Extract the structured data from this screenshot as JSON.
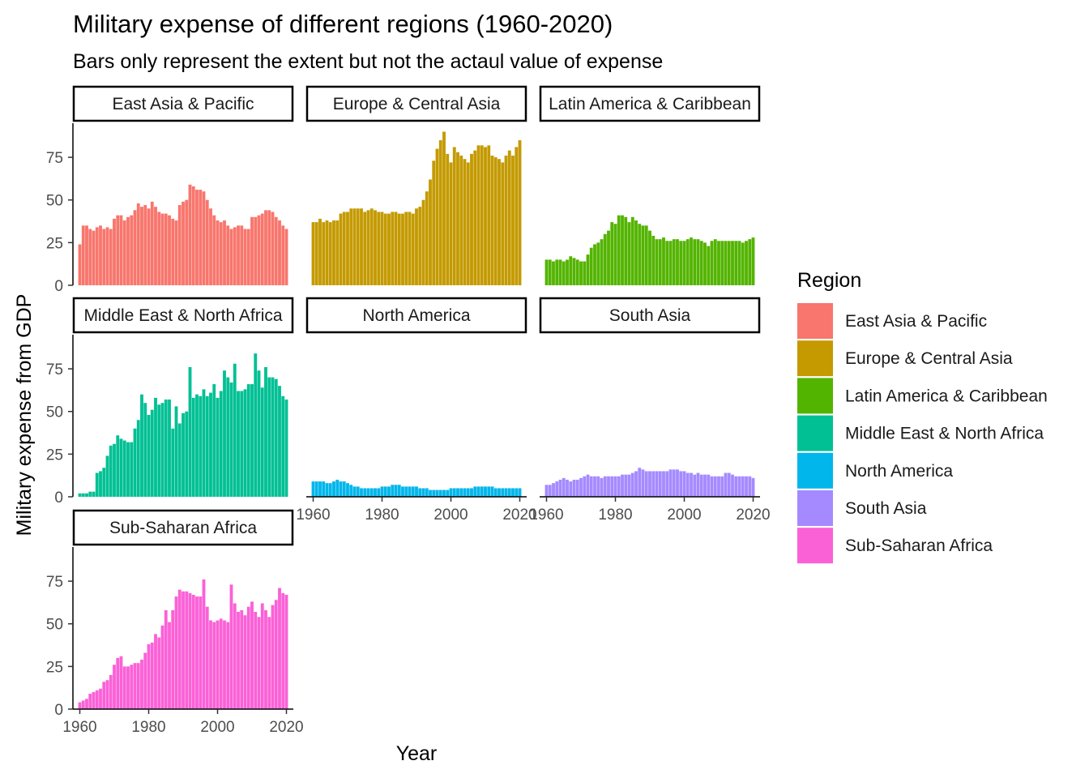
{
  "chart_data": {
    "type": "bar",
    "title": "Military expense of different regions (1960-2020)",
    "subtitle": "Bars only represent the extent but not the actaul value of expense",
    "xlabel": "Year",
    "ylabel": "Military expense from GDP",
    "xlim": [
      1958,
      2022
    ],
    "ylim": [
      0,
      95
    ],
    "x_ticks": [
      1960,
      1980,
      2000,
      2020
    ],
    "y_ticks": [
      0,
      25,
      50,
      75
    ],
    "legend": {
      "title": "Region",
      "placement": "right"
    },
    "grid": false,
    "x": [
      1960,
      1961,
      1962,
      1963,
      1964,
      1965,
      1966,
      1967,
      1968,
      1969,
      1970,
      1971,
      1972,
      1973,
      1974,
      1975,
      1976,
      1977,
      1978,
      1979,
      1980,
      1981,
      1982,
      1983,
      1984,
      1985,
      1986,
      1987,
      1988,
      1989,
      1990,
      1991,
      1992,
      1993,
      1994,
      1995,
      1996,
      1997,
      1998,
      1999,
      2000,
      2001,
      2002,
      2003,
      2004,
      2005,
      2006,
      2007,
      2008,
      2009,
      2010,
      2011,
      2012,
      2013,
      2014,
      2015,
      2016,
      2017,
      2018,
      2019,
      2020
    ],
    "series": [
      {
        "name": "East Asia & Pacific",
        "color": "#F8766D",
        "values": [
          24,
          35,
          35,
          33,
          32,
          34,
          35,
          33,
          34,
          33,
          39,
          41,
          41,
          38,
          40,
          41,
          44,
          48,
          46,
          47,
          45,
          49,
          46,
          43,
          42,
          42,
          41,
          39,
          38,
          47,
          49,
          50,
          59,
          58,
          56,
          56,
          55,
          50,
          45,
          41,
          38,
          37,
          38,
          35,
          33,
          34,
          35,
          35,
          33,
          33,
          40,
          40,
          41,
          42,
          44,
          44,
          43,
          40,
          38,
          35,
          33
        ]
      },
      {
        "name": "Europe & Central Asia",
        "color": "#C49A00",
        "values": [
          37,
          37,
          39,
          37,
          38,
          37,
          38,
          38,
          42,
          43,
          43,
          45,
          45,
          45,
          45,
          43,
          44,
          45,
          44,
          43,
          43,
          42,
          42,
          43,
          43,
          42,
          42,
          43,
          43,
          42,
          45,
          46,
          50,
          55,
          62,
          73,
          80,
          85,
          90,
          77,
          72,
          81,
          78,
          76,
          74,
          72,
          77,
          79,
          82,
          82,
          81,
          82,
          76,
          75,
          74,
          72,
          76,
          79,
          76,
          81,
          85
        ]
      },
      {
        "name": "Latin America & Caribbean",
        "color": "#53B400",
        "values": [
          15,
          15,
          14,
          15,
          15,
          14,
          15,
          17,
          16,
          15,
          14,
          14,
          18,
          22,
          24,
          25,
          27,
          30,
          32,
          37,
          36,
          41,
          41,
          40,
          37,
          40,
          38,
          36,
          35,
          35,
          32,
          29,
          27,
          27,
          28,
          26,
          26,
          27,
          27,
          26,
          26,
          27,
          28,
          27,
          27,
          26,
          25,
          23,
          26,
          27,
          26,
          26,
          26,
          26,
          26,
          26,
          26,
          25,
          26,
          27,
          28
        ]
      },
      {
        "name": "Middle East & North Africa",
        "color": "#00C094",
        "values": [
          2,
          2,
          2,
          3,
          3,
          14,
          15,
          17,
          24,
          30,
          31,
          36,
          34,
          33,
          32,
          32,
          40,
          45,
          60,
          55,
          48,
          51,
          58,
          54,
          55,
          57,
          57,
          40,
          53,
          43,
          49,
          50,
          76,
          58,
          60,
          59,
          63,
          59,
          61,
          66,
          58,
          62,
          74,
          70,
          67,
          78,
          62,
          62,
          63,
          66,
          66,
          84,
          74,
          64,
          76,
          70,
          70,
          69,
          65,
          59,
          57
        ]
      },
      {
        "name": "North America",
        "color": "#00B6EB",
        "values": [
          9,
          9,
          9,
          9,
          8,
          8,
          9,
          10,
          9,
          9,
          8,
          7,
          6,
          6,
          5,
          5,
          5,
          5,
          5,
          5,
          6,
          6,
          6,
          7,
          7,
          7,
          6,
          6,
          6,
          6,
          6,
          5,
          5,
          5,
          4,
          4,
          4,
          4,
          4,
          4,
          5,
          5,
          5,
          5,
          5,
          5,
          5,
          6,
          6,
          6,
          6,
          6,
          6,
          5,
          5,
          5,
          5,
          5,
          5,
          5,
          5
        ]
      },
      {
        "name": "South Asia",
        "color": "#A58AFF",
        "values": [
          7,
          7,
          8,
          9,
          10,
          11,
          10,
          9,
          10,
          10,
          11,
          12,
          13,
          12,
          12,
          12,
          11,
          12,
          12,
          12,
          12,
          12,
          13,
          13,
          13,
          14,
          15,
          17,
          16,
          15,
          15,
          15,
          15,
          15,
          15,
          15,
          16,
          16,
          16,
          15,
          15,
          14,
          14,
          13,
          14,
          13,
          13,
          13,
          12,
          12,
          12,
          12,
          14,
          14,
          13,
          12,
          12,
          12,
          12,
          12,
          11
        ]
      },
      {
        "name": "Sub-Saharan Africa",
        "color": "#FB61D7",
        "values": [
          4,
          5,
          6,
          9,
          10,
          11,
          12,
          16,
          17,
          20,
          26,
          30,
          31,
          25,
          25,
          26,
          27,
          27,
          29,
          33,
          38,
          39,
          44,
          42,
          49,
          58,
          51,
          58,
          66,
          70,
          69,
          69,
          68,
          67,
          66,
          66,
          76,
          60,
          52,
          51,
          52,
          53,
          52,
          51,
          73,
          62,
          57,
          58,
          55,
          60,
          63,
          57,
          54,
          62,
          58,
          54,
          61,
          64,
          71,
          68,
          67
        ]
      }
    ]
  }
}
